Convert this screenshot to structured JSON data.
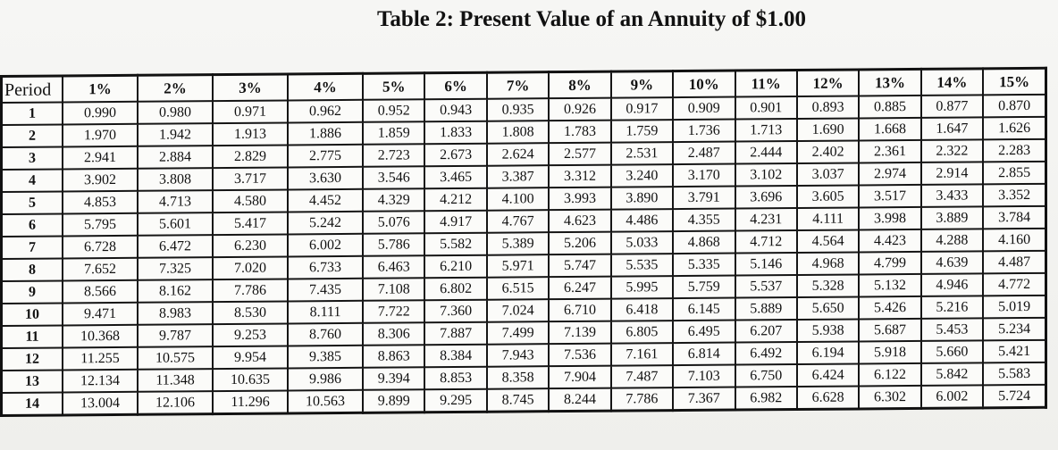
{
  "title": "Table 2:  Present Value of an Annuity of $1.00",
  "table": {
    "period_header": "Period",
    "rate_headers": [
      "1%",
      "2%",
      "3%",
      "4%",
      "5%",
      "6%",
      "7%",
      "8%",
      "9%",
      "10%",
      "11%",
      "12%",
      "13%",
      "14%",
      "15%"
    ],
    "rows": [
      {
        "period": "1",
        "values": [
          "0.990",
          "0.980",
          "0.971",
          "0.962",
          "0.952",
          "0.943",
          "0.935",
          "0.926",
          "0.917",
          "0.909",
          "0.901",
          "0.893",
          "0.885",
          "0.877",
          "0.870"
        ]
      },
      {
        "period": "2",
        "values": [
          "1.970",
          "1.942",
          "1.913",
          "1.886",
          "1.859",
          "1.833",
          "1.808",
          "1.783",
          "1.759",
          "1.736",
          "1.713",
          "1.690",
          "1.668",
          "1.647",
          "1.626"
        ]
      },
      {
        "period": "3",
        "values": [
          "2.941",
          "2.884",
          "2.829",
          "2.775",
          "2.723",
          "2.673",
          "2.624",
          "2.577",
          "2.531",
          "2.487",
          "2.444",
          "2.402",
          "2.361",
          "2.322",
          "2.283"
        ]
      },
      {
        "period": "4",
        "values": [
          "3.902",
          "3.808",
          "3.717",
          "3.630",
          "3.546",
          "3.465",
          "3.387",
          "3.312",
          "3.240",
          "3.170",
          "3.102",
          "3.037",
          "2.974",
          "2.914",
          "2.855"
        ]
      },
      {
        "period": "5",
        "values": [
          "4.853",
          "4.713",
          "4.580",
          "4.452",
          "4.329",
          "4.212",
          "4.100",
          "3.993",
          "3.890",
          "3.791",
          "3.696",
          "3.605",
          "3.517",
          "3.433",
          "3.352"
        ]
      },
      {
        "period": "6",
        "values": [
          "5.795",
          "5.601",
          "5.417",
          "5.242",
          "5.076",
          "4.917",
          "4.767",
          "4.623",
          "4.486",
          "4.355",
          "4.231",
          "4.111",
          "3.998",
          "3.889",
          "3.784"
        ]
      },
      {
        "period": "7",
        "values": [
          "6.728",
          "6.472",
          "6.230",
          "6.002",
          "5.786",
          "5.582",
          "5.389",
          "5.206",
          "5.033",
          "4.868",
          "4.712",
          "4.564",
          "4.423",
          "4.288",
          "4.160"
        ]
      },
      {
        "period": "8",
        "values": [
          "7.652",
          "7.325",
          "7.020",
          "6.733",
          "6.463",
          "6.210",
          "5.971",
          "5.747",
          "5.535",
          "5.335",
          "5.146",
          "4.968",
          "4.799",
          "4.639",
          "4.487"
        ]
      },
      {
        "period": "9",
        "values": [
          "8.566",
          "8.162",
          "7.786",
          "7.435",
          "7.108",
          "6.802",
          "6.515",
          "6.247",
          "5.995",
          "5.759",
          "5.537",
          "5.328",
          "5.132",
          "4.946",
          "4.772"
        ]
      },
      {
        "period": "10",
        "values": [
          "9.471",
          "8.983",
          "8.530",
          "8.111",
          "7.722",
          "7.360",
          "7.024",
          "6.710",
          "6.418",
          "6.145",
          "5.889",
          "5.650",
          "5.426",
          "5.216",
          "5.019"
        ]
      },
      {
        "period": "11",
        "values": [
          "10.368",
          "9.787",
          "9.253",
          "8.760",
          "8.306",
          "7.887",
          "7.499",
          "7.139",
          "6.805",
          "6.495",
          "6.207",
          "5.938",
          "5.687",
          "5.453",
          "5.234"
        ]
      },
      {
        "period": "12",
        "values": [
          "11.255",
          "10.575",
          "9.954",
          "9.385",
          "8.863",
          "8.384",
          "7.943",
          "7.536",
          "7.161",
          "6.814",
          "6.492",
          "6.194",
          "5.918",
          "5.660",
          "5.421"
        ]
      },
      {
        "period": "13",
        "values": [
          "12.134",
          "11.348",
          "10.635",
          "9.986",
          "9.394",
          "8.853",
          "8.358",
          "7.904",
          "7.487",
          "7.103",
          "6.750",
          "6.424",
          "6.122",
          "5.842",
          "5.583"
        ]
      },
      {
        "period": "14",
        "values": [
          "13.004",
          "12.106",
          "11.296",
          "10.563",
          "9.899",
          "9.295",
          "8.745",
          "8.244",
          "7.786",
          "7.367",
          "6.982",
          "6.628",
          "6.302",
          "6.002",
          "5.724"
        ]
      }
    ]
  }
}
